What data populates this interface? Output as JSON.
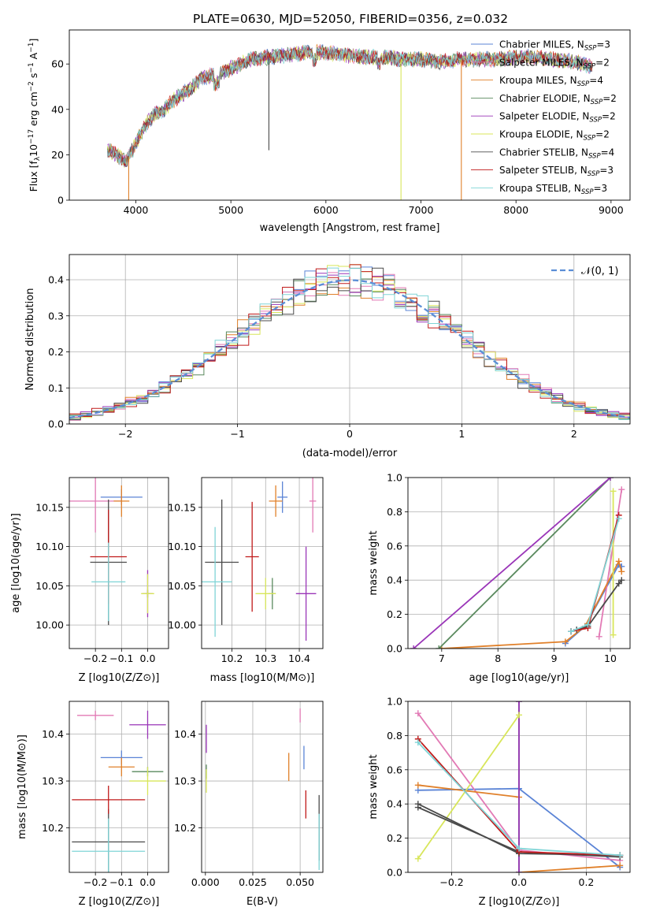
{
  "figure": {
    "title": "PLATE=0630, MJD=52050, FIBERID=0356, z=0.032"
  },
  "series": [
    {
      "name": "Chabrier MILES",
      "nssp": "3",
      "color": "#5b84d6"
    },
    {
      "name": "Salpeter MILES",
      "nssp": "2",
      "color": "#e27ab5"
    },
    {
      "name": "Kroupa MILES",
      "nssp": "4",
      "color": "#e0802a"
    },
    {
      "name": "Chabrier ELODIE",
      "nssp": "2",
      "color": "#5a8a5e"
    },
    {
      "name": "Salpeter ELODIE",
      "nssp": "2",
      "color": "#9a35b8"
    },
    {
      "name": "Kroupa ELODIE",
      "nssp": "2",
      "color": "#d8e65a"
    },
    {
      "name": "Chabrier STELIB",
      "nssp": "4",
      "color": "#4a4a4a"
    },
    {
      "name": "Salpeter STELIB",
      "nssp": "3",
      "color": "#c01a1a"
    },
    {
      "name": "Kroupa STELIB",
      "nssp": "3",
      "color": "#7fd4d6"
    }
  ],
  "chart_data": [
    {
      "id": "spectrum",
      "type": "line",
      "xlabel": "wavelength [Angstrom, rest frame]",
      "ylabel": "Flux [f_λ10^-17 erg cm^-2 s^-1 A^-1]",
      "xlim": [
        3300,
        9200
      ],
      "ylim": [
        0,
        75
      ],
      "xticks": [
        4000,
        5000,
        6000,
        7000,
        8000,
        9000
      ],
      "yticks": [
        0,
        20,
        40,
        60
      ],
      "grid": false,
      "legend": "top-right",
      "continuum": {
        "x": [
          3700,
          3800,
          3900,
          4000,
          4100,
          4200,
          4300,
          4400,
          4500,
          4600,
          4700,
          4800,
          4900,
          5000,
          5200,
          5400,
          5600,
          5800,
          6000,
          6200,
          6400,
          6600,
          6800,
          7000,
          7200,
          7400,
          7600,
          7800,
          8000,
          8200,
          8400,
          8600,
          8800
        ],
        "y": [
          22,
          20,
          17,
          25,
          33,
          38,
          40,
          44,
          47,
          50,
          54,
          55,
          56,
          58,
          62,
          63,
          64,
          65,
          65,
          64,
          63,
          63,
          62,
          62,
          61,
          62,
          62,
          62,
          63,
          63,
          62,
          61,
          59
        ]
      },
      "dips": [
        {
          "series": "Kroupa MILES",
          "x": 3925,
          "y": 0
        },
        {
          "series": "Kroupa ELODIE",
          "x": 6790,
          "y": 0
        },
        {
          "series": "Kroupa MILES",
          "x": 7425,
          "y": 0
        },
        {
          "series": "Chabrier STELIB",
          "x": 5400,
          "y": 22
        }
      ],
      "legend_note": "N_SSP"
    },
    {
      "id": "residuals",
      "type": "line",
      "xlabel": "(data-model)/error",
      "ylabel": "Normed distribution",
      "xlim": [
        -2.5,
        2.5
      ],
      "ylim": [
        0,
        0.47
      ],
      "xticks": [
        -2,
        -1,
        0,
        1,
        2
      ],
      "yticks": [
        0.0,
        0.1,
        0.2,
        0.3,
        0.4
      ],
      "grid": true,
      "legend": "top-right",
      "gaussian_label": "𝒩(0, 1)",
      "histogram_bin_width": 0.1
    },
    {
      "id": "age_vs_Z",
      "type": "scatter",
      "xlabel": "Z [log10(Z/Z⊙)]",
      "ylabel": "age  [log10(age/yr)]",
      "xlim": [
        -0.3,
        0.08
      ],
      "ylim": [
        9.97,
        10.188
      ],
      "xticks": [
        -0.2,
        -0.1,
        0.0
      ],
      "yticks": [
        10.0,
        10.05,
        10.1,
        10.15
      ],
      "points": [
        {
          "series": "Chabrier MILES",
          "x": -0.1,
          "y": 10.163,
          "xerr": 0.08,
          "yerr": 0.01
        },
        {
          "series": "Salpeter MILES",
          "x": -0.2,
          "y": 10.158,
          "xerr": 0.1,
          "yerr": 0.04
        },
        {
          "series": "Kroupa MILES",
          "x": -0.1,
          "y": 10.158,
          "xerr": 0.03,
          "yerr": 0.02
        },
        {
          "series": "Chabrier ELODIE",
          "x": 0.0,
          "y": 10.04,
          "xerr": 0.01,
          "yerr": 0.005
        },
        {
          "series": "Salpeter ELODIE",
          "x": 0.0,
          "y": 10.04,
          "xerr": 0.02,
          "yerr": 0.03
        },
        {
          "series": "Kroupa ELODIE",
          "x": 0.0,
          "y": 10.04,
          "xerr": 0.025,
          "yerr": 0.025
        },
        {
          "series": "Chabrier STELIB",
          "x": -0.15,
          "y": 10.08,
          "xerr": 0.07,
          "yerr": 0.08
        },
        {
          "series": "Salpeter STELIB",
          "x": -0.15,
          "y": 10.087,
          "xerr": 0.07,
          "yerr": 0.06
        },
        {
          "series": "Kroupa STELIB",
          "x": -0.15,
          "y": 10.055,
          "xerr": 0.065,
          "yerr": 0.05
        }
      ]
    },
    {
      "id": "age_vs_mass",
      "type": "scatter",
      "xlabel": "mass [log10(M/M⊙)]",
      "ylabel": "",
      "xlim": [
        10.11,
        10.47
      ],
      "ylim": [
        9.97,
        10.188
      ],
      "xticks": [
        10.2,
        10.3,
        10.4
      ],
      "yticks": [
        10.0,
        10.05,
        10.1,
        10.15
      ],
      "points": [
        {
          "series": "Chabrier MILES",
          "x": 10.35,
          "y": 10.163,
          "xerr": 0.015,
          "yerr": 0.02
        },
        {
          "series": "Salpeter MILES",
          "x": 10.44,
          "y": 10.158,
          "xerr": 0.01,
          "yerr": 0.04
        },
        {
          "series": "Kroupa MILES",
          "x": 10.33,
          "y": 10.158,
          "xerr": 0.02,
          "yerr": 0.02
        },
        {
          "series": "Chabrier ELODIE",
          "x": 10.32,
          "y": 10.04,
          "xerr": 0.01,
          "yerr": 0.02
        },
        {
          "series": "Salpeter ELODIE",
          "x": 10.42,
          "y": 10.04,
          "xerr": 0.03,
          "yerr": 0.06
        },
        {
          "series": "Kroupa ELODIE",
          "x": 10.3,
          "y": 10.04,
          "xerr": 0.03,
          "yerr": 0.02
        },
        {
          "series": "Chabrier STELIB",
          "x": 10.17,
          "y": 10.08,
          "xerr": 0.05,
          "yerr": 0.08
        },
        {
          "series": "Salpeter STELIB",
          "x": 10.26,
          "y": 10.087,
          "xerr": 0.02,
          "yerr": 0.07
        },
        {
          "series": "Kroupa STELIB",
          "x": 10.15,
          "y": 10.055,
          "xerr": 0.05,
          "yerr": 0.07
        }
      ]
    },
    {
      "id": "weight_vs_age",
      "type": "line",
      "xlabel": "age  [log10(age/yr)]",
      "ylabel": "mass weight",
      "xlim": [
        6.4,
        10.35
      ],
      "ylim": [
        0.0,
        1.0
      ],
      "xticks": [
        7,
        8,
        9,
        10
      ],
      "yticks": [
        0.0,
        0.2,
        0.4,
        0.6,
        0.8,
        1.0
      ],
      "grid": true,
      "lines": [
        {
          "series": "Chabrier MILES",
          "x": [
            9.2,
            9.55,
            10.15,
            10.2
          ],
          "y": [
            0.03,
            0.13,
            0.49,
            0.48
          ]
        },
        {
          "series": "Salpeter MILES",
          "x": [
            9.8,
            10.2
          ],
          "y": [
            0.07,
            0.93
          ]
        },
        {
          "series": "Kroupa MILES",
          "x": [
            7.0,
            9.2,
            9.55,
            10.15,
            10.2
          ],
          "y": [
            0.0,
            0.04,
            0.13,
            0.51,
            0.45
          ]
        },
        {
          "series": "Chabrier ELODIE",
          "x": [
            6.95,
            10.0
          ],
          "y": [
            0.0,
            1.0
          ]
        },
        {
          "series": "Salpeter ELODIE",
          "x": [
            6.5,
            10.0
          ],
          "y": [
            0.0,
            1.0
          ]
        },
        {
          "series": "Kroupa ELODIE",
          "x": [
            10.05,
            10.05
          ],
          "y": [
            0.08,
            0.92
          ]
        },
        {
          "series": "Chabrier STELIB",
          "x": [
            9.3,
            9.4,
            9.6,
            10.15,
            10.2
          ],
          "y": [
            0.1,
            0.11,
            0.13,
            0.38,
            0.4
          ]
        },
        {
          "series": "Salpeter STELIB",
          "x": [
            9.3,
            9.6,
            10.15
          ],
          "y": [
            0.1,
            0.12,
            0.78
          ]
        },
        {
          "series": "Kroupa STELIB",
          "x": [
            9.3,
            9.6,
            10.15
          ],
          "y": [
            0.1,
            0.14,
            0.76
          ]
        }
      ]
    },
    {
      "id": "mass_vs_Z",
      "type": "scatter",
      "xlabel": "Z [log10(Z/Z⊙)]",
      "ylabel": "mass [log10(M/M⊙)]",
      "xlim": [
        -0.3,
        0.08
      ],
      "ylim": [
        10.105,
        10.47
      ],
      "xticks": [
        -0.2,
        -0.1,
        0.0
      ],
      "yticks": [
        10.2,
        10.3,
        10.4
      ],
      "points": [
        {
          "series": "Chabrier MILES",
          "x": -0.1,
          "y": 10.35,
          "xerr": 0.08,
          "yerr": 0.015
        },
        {
          "series": "Salpeter MILES",
          "x": -0.2,
          "y": 10.44,
          "xerr": 0.07,
          "yerr": 0.01
        },
        {
          "series": "Kroupa MILES",
          "x": -0.1,
          "y": 10.33,
          "xerr": 0.05,
          "yerr": 0.02
        },
        {
          "series": "Chabrier ELODIE",
          "x": 0.0,
          "y": 10.32,
          "xerr": 0.06,
          "yerr": 0.01
        },
        {
          "series": "Salpeter ELODIE",
          "x": 0.0,
          "y": 10.42,
          "xerr": 0.07,
          "yerr": 0.03
        },
        {
          "series": "Kroupa ELODIE",
          "x": 0.0,
          "y": 10.3,
          "xerr": 0.07,
          "yerr": 0.03
        },
        {
          "series": "Chabrier STELIB",
          "x": -0.15,
          "y": 10.17,
          "xerr": 0.14,
          "yerr": 0.07
        },
        {
          "series": "Salpeter STELIB",
          "x": -0.15,
          "y": 10.26,
          "xerr": 0.14,
          "yerr": 0.03
        },
        {
          "series": "Kroupa STELIB",
          "x": -0.15,
          "y": 10.15,
          "xerr": 0.14,
          "yerr": 0.07
        }
      ]
    },
    {
      "id": "mass_vs_EBV",
      "type": "scatter",
      "xlabel": "E(B-V)",
      "ylabel": "",
      "xlim": [
        -0.002,
        0.062
      ],
      "ylim": [
        10.105,
        10.47
      ],
      "xticks": [
        0.0,
        0.025,
        0.05
      ],
      "yticks": [
        10.2,
        10.3,
        10.4
      ],
      "points": [
        {
          "series": "Chabrier MILES",
          "x": 0.052,
          "y": 10.35,
          "xerr": 0,
          "yerr": 0.025
        },
        {
          "series": "Salpeter MILES",
          "x": 0.05,
          "y": 10.44,
          "xerr": 0,
          "yerr": 0.015
        },
        {
          "series": "Kroupa MILES",
          "x": 0.044,
          "y": 10.33,
          "xerr": 0,
          "yerr": 0.03
        },
        {
          "series": "Chabrier ELODIE",
          "x": 0.0005,
          "y": 10.32,
          "xerr": 0,
          "yerr": 0.015
        },
        {
          "series": "Salpeter ELODIE",
          "x": 0.0005,
          "y": 10.39,
          "xerr": 0,
          "yerr": 0.03
        },
        {
          "series": "Kroupa ELODIE",
          "x": 0.0005,
          "y": 10.3,
          "xerr": 0,
          "yerr": 0.025
        },
        {
          "series": "Chabrier STELIB",
          "x": 0.06,
          "y": 10.2,
          "xerr": 0,
          "yerr": 0.07
        },
        {
          "series": "Salpeter STELIB",
          "x": 0.053,
          "y": 10.25,
          "xerr": 0,
          "yerr": 0.03
        },
        {
          "series": "Kroupa STELIB",
          "x": 0.06,
          "y": 10.17,
          "xerr": 0,
          "yerr": 0.06
        }
      ]
    },
    {
      "id": "weight_vs_Z",
      "type": "line",
      "xlabel": "Z [log10(Z/Z⊙)]",
      "ylabel": "mass weight",
      "xlim": [
        -0.33,
        0.33
      ],
      "ylim": [
        0.0,
        1.0
      ],
      "xticks": [
        -0.2,
        0.0,
        0.2
      ],
      "yticks": [
        0.0,
        0.2,
        0.4,
        0.6,
        0.8,
        1.0
      ],
      "grid": true,
      "lines": [
        {
          "series": "Chabrier MILES",
          "x": [
            -0.3,
            0.0,
            0.3
          ],
          "y": [
            0.48,
            0.49,
            0.03
          ]
        },
        {
          "series": "Salpeter MILES",
          "x": [
            -0.3,
            0.0,
            0.3
          ],
          "y": [
            0.93,
            0.13,
            0.07
          ]
        },
        {
          "series": "Kroupa MILES",
          "x": [
            -0.3,
            0.0
          ],
          "y": [
            0.51,
            0.44
          ]
        },
        {
          "series": "Kroupa MILES",
          "x": [
            0.0,
            0.3
          ],
          "y": [
            0.0,
            0.04
          ]
        },
        {
          "series": "Chabrier ELODIE",
          "x": [
            0.0,
            0.0
          ],
          "y": [
            0.0,
            1.0
          ]
        },
        {
          "series": "Salpeter ELODIE",
          "x": [
            0.0,
            0.0
          ],
          "y": [
            0.0,
            1.0
          ]
        },
        {
          "series": "Kroupa ELODIE",
          "x": [
            -0.3,
            0.0
          ],
          "y": [
            0.08,
            0.92
          ]
        },
        {
          "series": "Chabrier STELIB",
          "x": [
            -0.3,
            0.0,
            0.3
          ],
          "y": [
            0.4,
            0.11,
            0.1
          ]
        },
        {
          "series": "Chabrier STELIB",
          "x": [
            -0.3,
            0.0,
            0.3
          ],
          "y": [
            0.38,
            0.12,
            0.09
          ]
        },
        {
          "series": "Salpeter STELIB",
          "x": [
            -0.3,
            0.0,
            0.3
          ],
          "y": [
            0.78,
            0.12,
            0.1
          ]
        },
        {
          "series": "Kroupa STELIB",
          "x": [
            -0.3,
            0.0,
            0.3
          ],
          "y": [
            0.76,
            0.14,
            0.1
          ]
        }
      ]
    }
  ]
}
